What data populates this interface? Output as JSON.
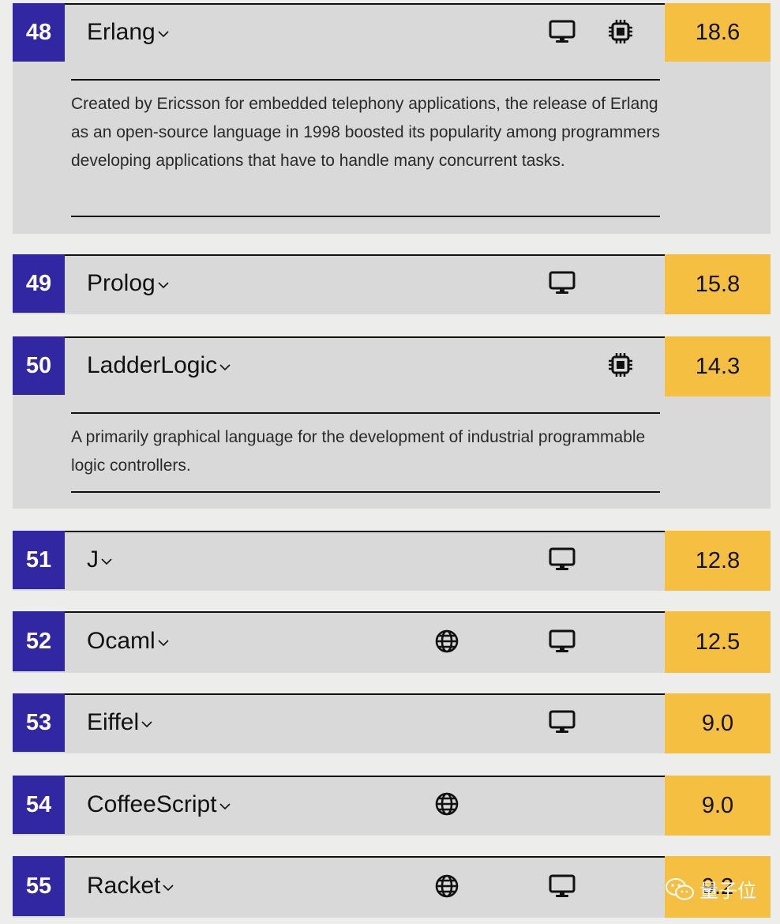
{
  "rows": [
    {
      "rank": "48",
      "name": "Erlang",
      "score": "18.6",
      "description": "Created by Ericsson for embedded telephony applications, the release of Erlang as an open-source language in 1998 boosted its popularity among programmers developing applications that have to handle many concurrent tasks.",
      "icons": [
        "desktop-icon",
        "chip-icon"
      ]
    },
    {
      "rank": "49",
      "name": "Prolog",
      "score": "15.8",
      "icons": [
        "desktop-icon"
      ]
    },
    {
      "rank": "50",
      "name": "LadderLogic",
      "score": "14.3",
      "description": "A primarily graphical language for the development of industrial programmable logic controllers.",
      "icons": [
        "chip-icon"
      ]
    },
    {
      "rank": "51",
      "name": "J",
      "score": "12.8",
      "icons": [
        "desktop-icon"
      ]
    },
    {
      "rank": "52",
      "name": "Ocaml",
      "score": "12.5",
      "icons": [
        "globe-icon",
        "desktop-icon"
      ]
    },
    {
      "rank": "53",
      "name": "Eiffel",
      "score": "9.0",
      "icons": [
        "desktop-icon"
      ]
    },
    {
      "rank": "54",
      "name": "CoffeeScript",
      "score": "9.0",
      "icons": [
        "globe-icon"
      ]
    },
    {
      "rank": "55",
      "name": "Racket",
      "score": "9.2",
      "icons": [
        "globe-icon",
        "desktop-icon"
      ]
    }
  ],
  "watermark": {
    "text": "量子位",
    "icon": "wechat-icon"
  },
  "colors": {
    "rank_bg": "#3227a3",
    "score_bg": "#f5bf42",
    "row_bg": "#d9d9d9",
    "page_bg": "#ededeb"
  }
}
